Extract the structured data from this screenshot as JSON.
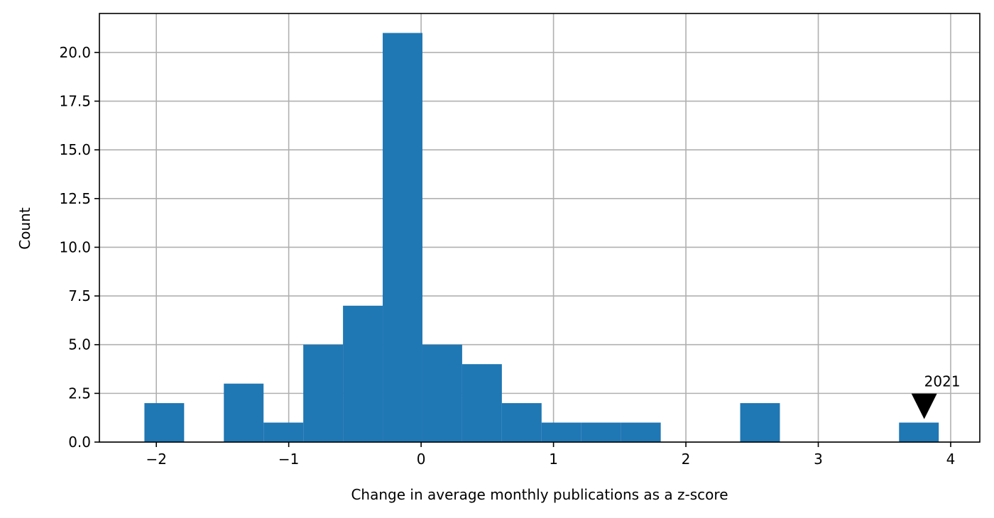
{
  "chart_data": {
    "type": "bar",
    "subtype": "histogram",
    "xlabel": "Change in average monthly publications as a z-score",
    "ylabel": "Count",
    "xlim": [
      -2.43,
      4.22
    ],
    "ylim": [
      0,
      22
    ],
    "grid": true,
    "bar_color": "#1f77b4",
    "bin_width": 0.3,
    "bins": [
      {
        "x0": -2.09,
        "x1": -1.79,
        "count": 2
      },
      {
        "x0": -1.79,
        "x1": -1.49,
        "count": 0
      },
      {
        "x0": -1.49,
        "x1": -1.19,
        "count": 3
      },
      {
        "x0": -1.19,
        "x1": -0.89,
        "count": 1
      },
      {
        "x0": -0.89,
        "x1": -0.59,
        "count": 5
      },
      {
        "x0": -0.59,
        "x1": -0.29,
        "count": 7
      },
      {
        "x0": -0.29,
        "x1": 0.01,
        "count": 21
      },
      {
        "x0": 0.01,
        "x1": 0.31,
        "count": 5
      },
      {
        "x0": 0.31,
        "x1": 0.61,
        "count": 4
      },
      {
        "x0": 0.61,
        "x1": 0.91,
        "count": 2
      },
      {
        "x0": 0.91,
        "x1": 1.21,
        "count": 1
      },
      {
        "x0": 1.21,
        "x1": 1.51,
        "count": 1
      },
      {
        "x0": 1.51,
        "x1": 1.81,
        "count": 1
      },
      {
        "x0": 1.81,
        "x1": 2.11,
        "count": 0
      },
      {
        "x0": 2.11,
        "x1": 2.41,
        "count": 0
      },
      {
        "x0": 2.41,
        "x1": 2.71,
        "count": 2
      },
      {
        "x0": 2.71,
        "x1": 3.01,
        "count": 0
      },
      {
        "x0": 3.01,
        "x1": 3.31,
        "count": 0
      },
      {
        "x0": 3.31,
        "x1": 3.61,
        "count": 0
      },
      {
        "x0": 3.61,
        "x1": 3.91,
        "count": 1
      }
    ],
    "x_ticks": [
      {
        "value": -2,
        "label": "−2"
      },
      {
        "value": -1,
        "label": "−1"
      },
      {
        "value": 0,
        "label": "0"
      },
      {
        "value": 1,
        "label": "1"
      },
      {
        "value": 2,
        "label": "2"
      },
      {
        "value": 3,
        "label": "3"
      },
      {
        "value": 4,
        "label": "4"
      }
    ],
    "y_ticks": [
      {
        "value": 0,
        "label": "0.0"
      },
      {
        "value": 2.5,
        "label": "2.5"
      },
      {
        "value": 5,
        "label": "5.0"
      },
      {
        "value": 7.5,
        "label": "7.5"
      },
      {
        "value": 10,
        "label": "10.0"
      },
      {
        "value": 12.5,
        "label": "12.5"
      },
      {
        "value": 15,
        "label": "15.0"
      },
      {
        "value": 17.5,
        "label": "17.5"
      },
      {
        "value": 20,
        "label": "20.0"
      }
    ],
    "annotations": [
      {
        "text": "2021",
        "x": 3.8,
        "y": 1.25,
        "marker": "down-triangle",
        "marker_color": "#000000"
      }
    ]
  }
}
